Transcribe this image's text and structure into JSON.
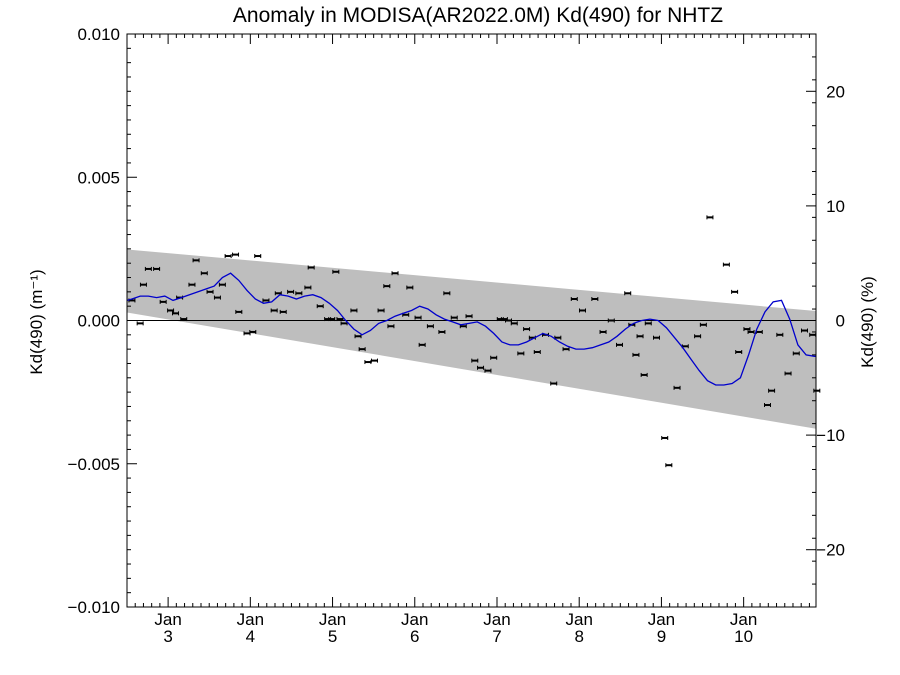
{
  "chart_data": {
    "type": "scatter",
    "title": "Anomaly in MODISA(AR2022.0M) Kd(490) for NHTZ",
    "ylabel": "Kd(490) (m⁻¹)",
    "ylabel_right": "Kd(490) (%)",
    "xlabel": "",
    "xlim": [
      2.5,
      10.88
    ],
    "ylim": [
      -0.01,
      0.01
    ],
    "ylim_right": [
      -25,
      25
    ],
    "grid": false,
    "x_ticks": [
      {
        "x": 3,
        "label_top": "Jan",
        "label_bottom": "3"
      },
      {
        "x": 4,
        "label_top": "Jan",
        "label_bottom": "4"
      },
      {
        "x": 5,
        "label_top": "Jan",
        "label_bottom": "5"
      },
      {
        "x": 6,
        "label_top": "Jan",
        "label_bottom": "6"
      },
      {
        "x": 7,
        "label_top": "Jan",
        "label_bottom": "7"
      },
      {
        "x": 8,
        "label_top": "Jan",
        "label_bottom": "8"
      },
      {
        "x": 9,
        "label_top": "Jan",
        "label_bottom": "9"
      },
      {
        "x": 10,
        "label_top": "Jan",
        "label_bottom": "10"
      }
    ],
    "y_ticks_left": [
      {
        "value": 0.01,
        "label": "0.010"
      },
      {
        "value": 0.005,
        "label": "0.005"
      },
      {
        "value": 0.0,
        "label": "0.000"
      },
      {
        "value": -0.005,
        "label": "−0.005"
      },
      {
        "value": -0.01,
        "label": "−0.010"
      }
    ],
    "y_ticks_right": [
      {
        "value": 20,
        "label": "20"
      },
      {
        "value": 10,
        "label": "10"
      },
      {
        "value": 0,
        "label": "0"
      },
      {
        "value": -10,
        "label": "−10"
      },
      {
        "value": -20,
        "label": "−20"
      }
    ],
    "band": {
      "x": [
        2.5,
        10.88
      ],
      "upper": [
        0.00248,
        0.00033
      ],
      "lower": [
        0.00028,
        -0.00378
      ],
      "color": "#bebebe"
    },
    "zero_line": 0.0,
    "points": {
      "color": "#000000",
      "x": [
        2.56,
        2.66,
        2.7,
        2.76,
        2.86,
        2.94,
        3.03,
        3.09,
        3.14,
        3.19,
        3.29,
        3.34,
        3.44,
        3.51,
        3.6,
        3.66,
        3.73,
        3.82,
        3.86,
        3.96,
        4.03,
        4.09,
        4.19,
        4.29,
        4.34,
        4.4,
        4.49,
        4.59,
        4.7,
        4.74,
        4.85,
        4.94,
        4.99,
        5.04,
        5.09,
        5.14,
        5.26,
        5.31,
        5.36,
        5.43,
        5.51,
        5.59,
        5.66,
        5.71,
        5.76,
        5.89,
        5.94,
        6.04,
        6.09,
        6.19,
        6.33,
        6.39,
        6.48,
        6.59,
        6.66,
        6.73,
        6.8,
        6.89,
        6.96,
        7.04,
        7.09,
        7.14,
        7.21,
        7.29,
        7.36,
        7.43,
        7.49,
        7.59,
        7.69,
        7.74,
        7.84,
        7.94,
        8.04,
        8.19,
        8.29,
        8.39,
        8.49,
        8.59,
        8.64,
        8.69,
        8.74,
        8.79,
        8.84,
        8.94,
        9.04,
        9.09,
        9.19,
        9.29,
        9.44,
        9.51,
        9.59,
        9.79,
        9.89,
        9.94,
        10.04,
        10.09,
        10.19,
        10.29,
        10.34,
        10.44,
        10.54,
        10.64,
        10.74,
        10.84,
        10.89
      ],
      "y": [
        0.0007,
        -0.0001,
        0.00125,
        0.0018,
        0.0018,
        0.00065,
        0.00035,
        0.00025,
        0.0008,
        5e-05,
        0.00125,
        0.0021,
        0.00165,
        0.001,
        0.0008,
        0.00125,
        0.00225,
        0.0023,
        0.0003,
        -0.00045,
        -0.0004,
        0.00225,
        0.0007,
        0.00035,
        0.00095,
        0.0003,
        0.001,
        0.00095,
        0.00115,
        0.00185,
        0.0005,
        5e-05,
        5e-05,
        0.0017,
        5e-05,
        -0.0001,
        0.00035,
        -0.00055,
        -0.001,
        -0.00145,
        -0.0014,
        0.00035,
        0.0012,
        -0.0002,
        0.00165,
        0.0002,
        0.00115,
        0.0001,
        -0.00085,
        -0.0002,
        -0.0004,
        0.00095,
        0.0001,
        -0.0002,
        0.00015,
        -0.0014,
        -0.00165,
        -0.00175,
        -0.0013,
        5e-05,
        5e-05,
        0.0,
        -0.0001,
        -0.00115,
        -0.0003,
        -0.0006,
        -0.0011,
        -0.0005,
        -0.0022,
        -0.0006,
        -0.001,
        0.00075,
        0.00035,
        0.00075,
        -0.0004,
        0.0,
        -0.00085,
        0.00095,
        -0.00015,
        -0.0012,
        -0.00055,
        -0.0019,
        -0.0001,
        -0.0006,
        -0.0041,
        -0.00505,
        -0.00235,
        -0.0009,
        -0.00055,
        -0.00015,
        0.0036,
        0.00195,
        0.001,
        -0.0011,
        -0.0003,
        -0.0004,
        -0.0004,
        -0.00295,
        -0.00245,
        -0.0005,
        -0.00185,
        -0.00115,
        -0.00035,
        -0.0005,
        -0.00245
      ]
    },
    "line": {
      "color": "#0000cc",
      "x": [
        2.5,
        2.56,
        2.66,
        2.76,
        2.86,
        2.96,
        3.06,
        3.16,
        3.26,
        3.36,
        3.46,
        3.56,
        3.66,
        3.76,
        3.86,
        3.96,
        4.06,
        4.16,
        4.26,
        4.36,
        4.46,
        4.56,
        4.66,
        4.76,
        4.86,
        4.96,
        5.06,
        5.16,
        5.26,
        5.36,
        5.46,
        5.56,
        5.66,
        5.76,
        5.86,
        5.96,
        6.06,
        6.16,
        6.26,
        6.36,
        6.46,
        6.56,
        6.66,
        6.76,
        6.86,
        6.96,
        7.06,
        7.16,
        7.26,
        7.36,
        7.46,
        7.56,
        7.66,
        7.76,
        7.86,
        7.96,
        8.06,
        8.16,
        8.26,
        8.36,
        8.46,
        8.56,
        8.66,
        8.76,
        8.86,
        8.96,
        9.06,
        9.16,
        9.26,
        9.36,
        9.46,
        9.56,
        9.66,
        9.76,
        9.86,
        9.96,
        10.06,
        10.16,
        10.26,
        10.36,
        10.46,
        10.56,
        10.66,
        10.76,
        10.86,
        10.88
      ],
      "y": [
        0.0007,
        0.00075,
        0.00085,
        0.00085,
        0.0008,
        0.00085,
        0.0007,
        0.0008,
        0.0009,
        0.001,
        0.0011,
        0.0012,
        0.0015,
        0.00165,
        0.0014,
        0.00105,
        0.00075,
        0.0006,
        0.00065,
        0.0009,
        0.00085,
        0.00075,
        0.00085,
        0.0009,
        0.0008,
        0.0006,
        0.00035,
        0.0,
        -0.0003,
        -0.0005,
        -0.00035,
        -0.0001,
        0.0,
        0.00015,
        0.00025,
        0.00035,
        0.0005,
        0.0004,
        0.0002,
        5e-05,
        -5e-05,
        -0.00015,
        -0.0001,
        -5e-05,
        -0.0002,
        -0.00045,
        -0.00075,
        -0.00085,
        -0.00085,
        -0.00075,
        -0.0006,
        -0.00045,
        -0.00055,
        -0.00075,
        -0.0009,
        -0.001,
        -0.001,
        -0.00095,
        -0.00085,
        -0.00075,
        -0.00055,
        -0.0003,
        -0.0001,
        0.0,
        5e-05,
        0.0,
        -0.00025,
        -0.0006,
        -0.00095,
        -0.00135,
        -0.00175,
        -0.0021,
        -0.00225,
        -0.00225,
        -0.0022,
        -0.002,
        -0.0012,
        -0.0003,
        0.0003,
        0.00065,
        0.0007,
        5e-05,
        -0.00085,
        -0.0012,
        -0.00125,
        -0.00125
      ]
    }
  }
}
